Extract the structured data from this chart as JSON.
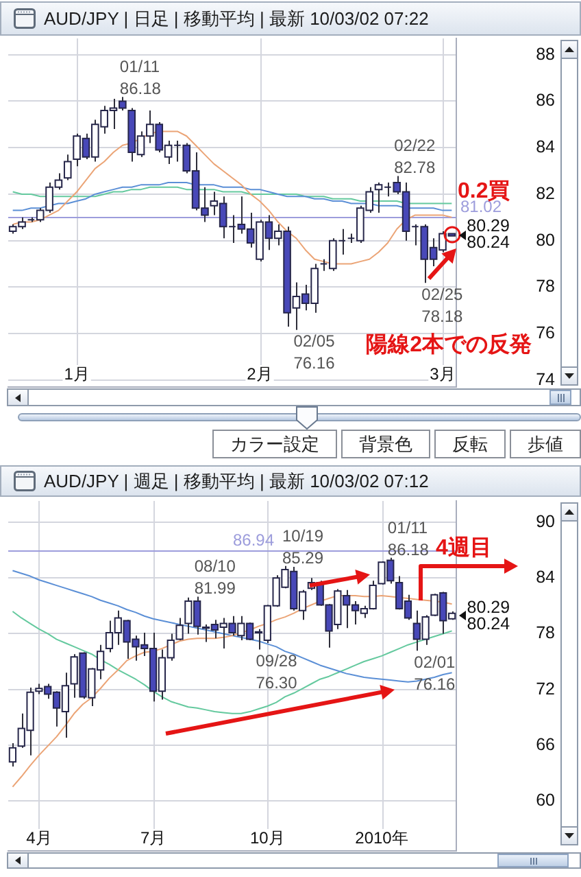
{
  "chart_data": [
    {
      "type": "candlestick",
      "title": "AUD/JPY | 日足 | 移動平均 | 最新 10/03/02 07:22",
      "categories": [
        null,
        null,
        null,
        null,
        null,
        null,
        null,
        "1月",
        null,
        null,
        null,
        null,
        null,
        null,
        null,
        null,
        null,
        null,
        null,
        null,
        null,
        null,
        null,
        null,
        null,
        null,
        null,
        "2月",
        null,
        null,
        null,
        null,
        null,
        null,
        null,
        null,
        null,
        null,
        null,
        null,
        null,
        null,
        null,
        null,
        null,
        null,
        null,
        "3月",
        null
      ],
      "ohlc": [
        [
          80.4,
          80.7,
          80.3,
          80.6
        ],
        [
          80.6,
          81.0,
          80.5,
          80.8
        ],
        [
          80.9,
          81.0,
          80.8,
          80.9
        ],
        [
          80.9,
          81.4,
          80.8,
          81.3
        ],
        [
          81.3,
          82.5,
          81.2,
          82.3
        ],
        [
          82.3,
          82.9,
          82.2,
          82.6
        ],
        [
          82.7,
          83.7,
          82.6,
          83.4
        ],
        [
          83.5,
          84.6,
          83.2,
          84.5
        ],
        [
          84.4,
          84.6,
          83.5,
          83.6
        ],
        [
          83.6,
          85.2,
          83.4,
          85.0
        ],
        [
          84.9,
          85.8,
          84.6,
          85.6
        ],
        [
          85.6,
          86.1,
          84.8,
          85.7
        ],
        [
          86.0,
          86.18,
          85.6,
          85.7
        ],
        [
          85.6,
          85.7,
          83.4,
          83.8
        ],
        [
          83.7,
          84.7,
          83.6,
          84.5
        ],
        [
          84.5,
          85.6,
          84.2,
          85.0
        ],
        [
          85.0,
          85.1,
          83.8,
          83.9
        ],
        [
          83.6,
          84.3,
          83.3,
          84.1
        ],
        [
          84.1,
          84.3,
          83.4,
          84.1
        ],
        [
          84.1,
          84.2,
          82.9,
          83.0
        ],
        [
          83.0,
          83.8,
          81.3,
          81.4
        ],
        [
          81.4,
          82.3,
          80.8,
          81.1
        ],
        [
          81.5,
          82.1,
          81.1,
          81.7
        ],
        [
          81.6,
          81.9,
          80.1,
          80.6
        ],
        [
          80.6,
          81.1,
          79.9,
          80.6
        ],
        [
          80.7,
          81.9,
          80.3,
          80.5
        ],
        [
          80.5,
          81.2,
          79.7,
          79.9
        ],
        [
          79.2,
          80.9,
          79.1,
          80.8
        ],
        [
          80.8,
          81.1,
          79.6,
          80.1
        ],
        [
          80.1,
          80.7,
          79.8,
          80.4
        ],
        [
          80.4,
          80.6,
          76.3,
          76.9
        ],
        [
          77.1,
          78.2,
          76.16,
          77.6
        ],
        [
          77.7,
          78.1,
          77.0,
          77.3
        ],
        [
          77.3,
          79.0,
          76.9,
          78.8
        ],
        [
          79.0,
          79.2,
          78.7,
          79.0
        ],
        [
          78.8,
          80.1,
          78.7,
          80.0
        ],
        [
          80.0,
          80.5,
          79.4,
          80.0
        ],
        [
          80.1,
          80.3,
          79.9,
          80.1
        ],
        [
          80.0,
          81.5,
          79.9,
          81.4
        ],
        [
          81.3,
          82.3,
          81.2,
          82.1
        ],
        [
          82.2,
          82.5,
          81.2,
          82.4
        ],
        [
          82.3,
          82.5,
          81.9,
          82.3
        ],
        [
          82.5,
          82.78,
          82.0,
          82.1
        ],
        [
          82.1,
          82.5,
          80.0,
          80.4
        ],
        [
          80.6,
          80.7,
          79.8,
          80.6
        ],
        [
          80.6,
          80.7,
          78.18,
          79.2
        ],
        [
          79.7,
          80.1,
          78.9,
          79.2
        ],
        [
          79.6,
          80.4,
          79.5,
          80.3
        ],
        [
          80.3,
          80.3,
          80.2,
          80.2
        ]
      ],
      "series": [
        {
          "type": "line",
          "color": "#eba476",
          "values": [
            80.7,
            80.8,
            80.8,
            80.9,
            81.1,
            81.3,
            81.7,
            82.1,
            82.6,
            83.1,
            83.4,
            83.8,
            84.1,
            84.2,
            84.4,
            84.6,
            84.7,
            84.7,
            84.7,
            84.5,
            84.1,
            83.7,
            83.3,
            83.0,
            82.7,
            82.4,
            82.0,
            81.7,
            81.3,
            80.8,
            80.4,
            80.1,
            79.6,
            79.2,
            79.1,
            79.0,
            79.0,
            79.0,
            79.1,
            79.2,
            79.5,
            79.9,
            80.5,
            80.9,
            81.1,
            81.1,
            81.1,
            81.1,
            81.0
          ]
        },
        {
          "type": "line",
          "color": "#5b8fd6",
          "values": [
            81.3,
            81.3,
            81.4,
            81.4,
            81.5,
            81.6,
            81.6,
            81.7,
            81.8,
            82.0,
            82.1,
            82.2,
            82.3,
            82.3,
            82.4,
            82.4,
            82.4,
            82.5,
            82.5,
            82.5,
            82.4,
            82.4,
            82.4,
            82.3,
            82.3,
            82.3,
            82.2,
            82.2,
            82.1,
            82.0,
            81.9,
            81.9,
            81.9,
            81.8,
            81.8,
            81.7,
            81.7,
            81.6,
            81.6,
            81.6,
            81.5,
            81.5,
            81.5,
            81.4,
            81.4,
            81.4,
            81.4,
            81.3,
            81.3
          ]
        },
        {
          "type": "line",
          "color": "#64c99e",
          "values": [
            82.1,
            82.0,
            82.0,
            81.9,
            81.9,
            81.9,
            81.9,
            81.9,
            81.9,
            81.9,
            82.0,
            82.1,
            82.1,
            82.2,
            82.2,
            82.3,
            82.3,
            82.3,
            82.3,
            82.2,
            82.2,
            82.2,
            82.2,
            82.1,
            82.1,
            82.1,
            82.0,
            82.0,
            82.0,
            82.0,
            82.0,
            82.0,
            81.9,
            81.9,
            81.9,
            81.8,
            81.8,
            81.8,
            81.7,
            81.7,
            81.7,
            81.7,
            81.7,
            81.6,
            81.6,
            81.6,
            81.6,
            81.6,
            81.6
          ]
        }
      ],
      "ylim": [
        73.7,
        88.7
      ],
      "yticks": [
        74,
        76,
        78,
        80,
        82,
        84,
        86,
        88
      ],
      "grid": true,
      "ref_lines": [
        {
          "axis": "y",
          "value": 81.02,
          "label": "81.02",
          "color": "#9d9ddc"
        }
      ],
      "annotations": [
        "01/11\n86.18",
        "02/05\n76.16",
        "02/22\n82.78",
        "02/25\n78.18",
        "80.29",
        "80.24",
        "0.2買",
        "陽線2本での反発",
        "カラー設定",
        "背景色",
        "反転",
        "歩値"
      ]
    },
    {
      "type": "candlestick",
      "title": "AUD/JPY | 週足 | 移動平均 | 最新 10/03/02 07:12",
      "categories": [
        null,
        null,
        null,
        "4月",
        null,
        null,
        null,
        null,
        null,
        null,
        null,
        null,
        null,
        null,
        null,
        null,
        "7月",
        null,
        null,
        null,
        null,
        null,
        null,
        null,
        null,
        null,
        null,
        null,
        null,
        "10月",
        null,
        null,
        null,
        null,
        null,
        null,
        null,
        null,
        null,
        null,
        null,
        null,
        "2010年",
        null,
        null,
        null,
        null,
        null,
        null,
        null,
        null
      ],
      "ohlc": [
        [
          64.2,
          66.2,
          63.7,
          65.7
        ],
        [
          65.9,
          69.4,
          65.7,
          67.8
        ],
        [
          67.6,
          72.2,
          64.9,
          71.7
        ],
        [
          71.8,
          72.6,
          71.5,
          72.1
        ],
        [
          72.3,
          72.6,
          71.0,
          71.5
        ],
        [
          71.7,
          71.8,
          68.0,
          70.0
        ],
        [
          69.6,
          73.8,
          66.8,
          72.4
        ],
        [
          72.6,
          75.8,
          71.1,
          75.5
        ],
        [
          75.9,
          76.0,
          71.0,
          71.2
        ],
        [
          71.1,
          74.3,
          70.2,
          74.2
        ],
        [
          74.1,
          76.8,
          73.1,
          76.1
        ],
        [
          76.4,
          79.4,
          76.0,
          78.1
        ],
        [
          78.1,
          80.5,
          76.8,
          79.7
        ],
        [
          79.4,
          79.5,
          75.3,
          77.1
        ],
        [
          77.4,
          77.8,
          75.1,
          76.6
        ],
        [
          76.8,
          78.1,
          75.6,
          76.4
        ],
        [
          76.4,
          78.1,
          70.7,
          71.8
        ],
        [
          71.8,
          76.3,
          70.9,
          75.4
        ],
        [
          75.4,
          78.0,
          75.1,
          77.3
        ],
        [
          77.4,
          79.7,
          77.3,
          78.9
        ],
        [
          79.1,
          81.9,
          78.0,
          81.5
        ],
        [
          81.5,
          81.99,
          77.9,
          78.8
        ],
        [
          78.6,
          79.0,
          77.1,
          78.7
        ],
        [
          79.0,
          79.5,
          77.5,
          78.4
        ],
        [
          78.7,
          79.7,
          76.4,
          79.1
        ],
        [
          79.1,
          79.9,
          77.8,
          78.1
        ],
        [
          77.8,
          79.9,
          77.3,
          79.1
        ],
        [
          79.1,
          79.2,
          77.3,
          77.4
        ],
        [
          78.1,
          78.5,
          76.3,
          78.2
        ],
        [
          77.3,
          81.1,
          77.0,
          81.0
        ],
        [
          81.0,
          84.3,
          80.9,
          84.0
        ],
        [
          83.0,
          85.29,
          82.9,
          84.9
        ],
        [
          84.7,
          85.2,
          80.5,
          80.7
        ],
        [
          80.5,
          82.7,
          79.5,
          82.5
        ],
        [
          82.9,
          84.0,
          82.7,
          83.5
        ],
        [
          83.5,
          83.7,
          81.0,
          81.1
        ],
        [
          81.1,
          81.2,
          76.5,
          78.3
        ],
        [
          79.0,
          82.8,
          78.5,
          82.6
        ],
        [
          82.1,
          82.7,
          78.6,
          81.1
        ],
        [
          81.1,
          81.5,
          79.0,
          80.5
        ],
        [
          80.2,
          81.0,
          79.7,
          80.7
        ],
        [
          80.7,
          83.7,
          80.6,
          83.2
        ],
        [
          83.4,
          85.8,
          83.3,
          85.7
        ],
        [
          85.9,
          86.18,
          83.4,
          83.7
        ],
        [
          83.5,
          84.2,
          80.6,
          80.7
        ],
        [
          81.5,
          82.2,
          79.5,
          79.7
        ],
        [
          79.1,
          80.5,
          76.16,
          77.4
        ],
        [
          77.4,
          80.0,
          76.8,
          79.8
        ],
        [
          80.0,
          82.3,
          79.9,
          82.2
        ],
        [
          82.4,
          82.5,
          78.0,
          79.4
        ],
        [
          79.6,
          80.4,
          79.5,
          80.2
        ]
      ],
      "series": [
        {
          "type": "line",
          "color": "#eba476",
          "values": [
            61.5,
            62.6,
            63.8,
            64.9,
            65.9,
            66.9,
            68.1,
            69.4,
            70.4,
            71.1,
            72.1,
            73.2,
            74.1,
            75.1,
            75.6,
            76.0,
            76.1,
            76.4,
            76.8,
            77.2,
            77.4,
            77.5,
            77.5,
            77.5,
            77.6,
            77.8,
            78.1,
            78.4,
            78.8,
            79.1,
            79.5,
            79.8,
            80.2,
            80.7,
            81.1,
            81.5,
            81.8,
            82.1,
            82.1,
            82.1,
            82.0,
            82.0,
            82.1,
            82.0,
            81.9,
            81.8,
            81.7,
            81.6,
            81.5,
            81.4,
            81.2
          ]
        },
        {
          "type": "line",
          "color": "#5b8fd6",
          "values": [
            84.8,
            84.5,
            84.2,
            83.8,
            83.5,
            83.2,
            82.9,
            82.6,
            82.3,
            82.0,
            81.6,
            81.3,
            81.0,
            80.6,
            80.3,
            79.9,
            79.6,
            79.4,
            79.2,
            79.0,
            78.8,
            78.6,
            78.4,
            78.2,
            78.0,
            77.8,
            77.6,
            77.4,
            77.2,
            76.9,
            76.6,
            76.1,
            75.8,
            75.4,
            75.0,
            74.6,
            74.3,
            74.0,
            73.7,
            73.5,
            73.3,
            73.2,
            73.1,
            73.0,
            72.9,
            72.8,
            72.9,
            73.1,
            73.3,
            73.6,
            73.8
          ]
        },
        {
          "type": "line",
          "color": "#64c99e",
          "values": [
            80.4,
            79.7,
            79.1,
            78.5,
            78.0,
            77.4,
            77.0,
            76.6,
            76.2,
            75.8,
            75.2,
            74.7,
            74.1,
            73.6,
            73.1,
            72.5,
            71.8,
            71.2,
            70.7,
            70.4,
            70.1,
            70.0,
            69.8,
            69.6,
            69.5,
            69.4,
            69.4,
            69.6,
            69.9,
            70.2,
            70.6,
            71.2,
            71.6,
            72.1,
            72.6,
            73.1,
            73.4,
            73.8,
            74.2,
            74.6,
            75.0,
            75.3,
            75.6,
            76.0,
            76.4,
            76.8,
            77.1,
            77.4,
            77.7,
            78.0,
            78.3
          ]
        }
      ],
      "ylim": [
        54.6,
        92.3
      ],
      "yticks": [
        60,
        66,
        72,
        78,
        84,
        90
      ],
      "grid": true,
      "ref_lines": [
        {
          "axis": "y",
          "value": 86.94,
          "label": "86.94",
          "color": "#9d9ddc"
        }
      ],
      "annotations": [
        "08/10\n81.99",
        "10/19\n85.29",
        "01/11\n86.18",
        "09/28\n76.30",
        "02/01\n76.16",
        "80.29",
        "80.24",
        "4週目"
      ]
    }
  ]
}
